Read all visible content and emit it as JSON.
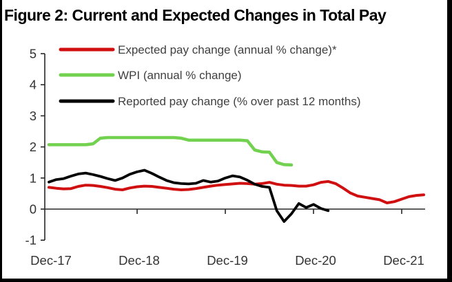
{
  "figure": {
    "title": "Figure 2: Current and Expected Changes in Total Pay"
  },
  "chart_data": {
    "type": "line",
    "title": "Figure 2: Current and Expected Changes in Total Pay",
    "x_unit": "months since Dec-2017, monthly spacing",
    "x_axis": {
      "ticks": [
        {
          "label": "Dec-17",
          "month": 0
        },
        {
          "label": "Dec-18",
          "month": 12
        },
        {
          "label": "Dec-19",
          "month": 24
        },
        {
          "label": "Dec-20",
          "month": 36
        },
        {
          "label": "Dec-21",
          "month": 48
        }
      ]
    },
    "y_axis": {
      "ticks": [
        5,
        4,
        3,
        2,
        1,
        0,
        -1
      ],
      "range": [
        -1,
        5
      ]
    },
    "legend_position": "top-inside",
    "grid": false,
    "series": [
      {
        "name": "Expected pay change (annual % change)*",
        "color": "#d01010",
        "stroke_width": 4,
        "x_start_month": 0,
        "values": [
          0.7,
          0.67,
          0.65,
          0.66,
          0.73,
          0.77,
          0.76,
          0.73,
          0.69,
          0.64,
          0.62,
          0.68,
          0.72,
          0.74,
          0.73,
          0.7,
          0.67,
          0.64,
          0.62,
          0.63,
          0.66,
          0.7,
          0.74,
          0.77,
          0.79,
          0.81,
          0.83,
          0.82,
          0.8,
          0.82,
          0.86,
          0.8,
          0.77,
          0.76,
          0.74,
          0.74,
          0.78,
          0.86,
          0.89,
          0.82,
          0.68,
          0.52,
          0.42,
          0.38,
          0.34,
          0.3,
          0.2,
          0.24,
          0.32,
          0.4,
          0.44,
          0.46
        ]
      },
      {
        "name": "WPI (annual % change)",
        "color": "#72d14e",
        "stroke_width": 4.5,
        "x_start_month": 0,
        "values": [
          2.07,
          2.07,
          2.07,
          2.07,
          2.07,
          2.07,
          2.1,
          2.28,
          2.3,
          2.3,
          2.3,
          2.3,
          2.3,
          2.3,
          2.3,
          2.3,
          2.3,
          2.3,
          2.28,
          2.22,
          2.22,
          2.22,
          2.22,
          2.22,
          2.22,
          2.22,
          2.22,
          2.2,
          1.9,
          1.84,
          1.83,
          1.5,
          1.43,
          1.42
        ]
      },
      {
        "name": "Reported pay change (% over past 12 months)",
        "color": "#000000",
        "stroke_width": 3.8,
        "x_start_month": 0,
        "values": [
          0.87,
          0.95,
          0.98,
          1.06,
          1.13,
          1.16,
          1.11,
          1.05,
          0.98,
          0.92,
          1.0,
          1.12,
          1.2,
          1.25,
          1.15,
          1.03,
          0.92,
          0.85,
          0.82,
          0.81,
          0.83,
          0.92,
          0.87,
          0.9,
          1.0,
          1.07,
          1.03,
          0.93,
          0.8,
          0.73,
          0.7,
          -0.05,
          -0.4,
          -0.15,
          0.18,
          0.05,
          0.15,
          0.02,
          -0.05
        ]
      }
    ]
  },
  "frame": {
    "border_color": "#000000"
  }
}
